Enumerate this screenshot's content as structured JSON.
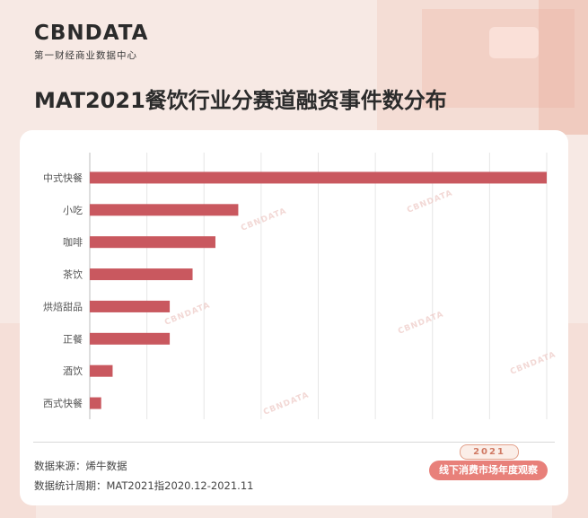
{
  "brand": {
    "logo_text": "CBNDATA",
    "subtitle": "第一财经商业数据中心"
  },
  "page": {
    "title": "MAT2021餐饮行业分赛道融资事件数分布"
  },
  "footer": {
    "source": "数据来源：烯牛数据",
    "period": "数据统计周期：MAT2021指2020.12-2021.11"
  },
  "badge": {
    "year": "2021",
    "text": "线下消费市场年度观察"
  },
  "colors": {
    "bar": "#c9585f",
    "background": "#f7e9e4",
    "card": "#ffffff",
    "grid": "#e6e6e6",
    "badge": "#e8807a"
  },
  "chart_data": {
    "type": "bar",
    "orientation": "horizontal",
    "title": "",
    "xlabel": "",
    "ylabel": "",
    "categories": [
      "中式快餐",
      "小吃",
      "咖啡",
      "茶饮",
      "烘焙甜品",
      "正餐",
      "酒饮",
      "西式快餐"
    ],
    "values": [
      40,
      13,
      11,
      9,
      7,
      7,
      2,
      1
    ],
    "xlim": [
      0,
      40
    ],
    "grid": true,
    "tick_labels_shown": false,
    "legend": "none"
  }
}
